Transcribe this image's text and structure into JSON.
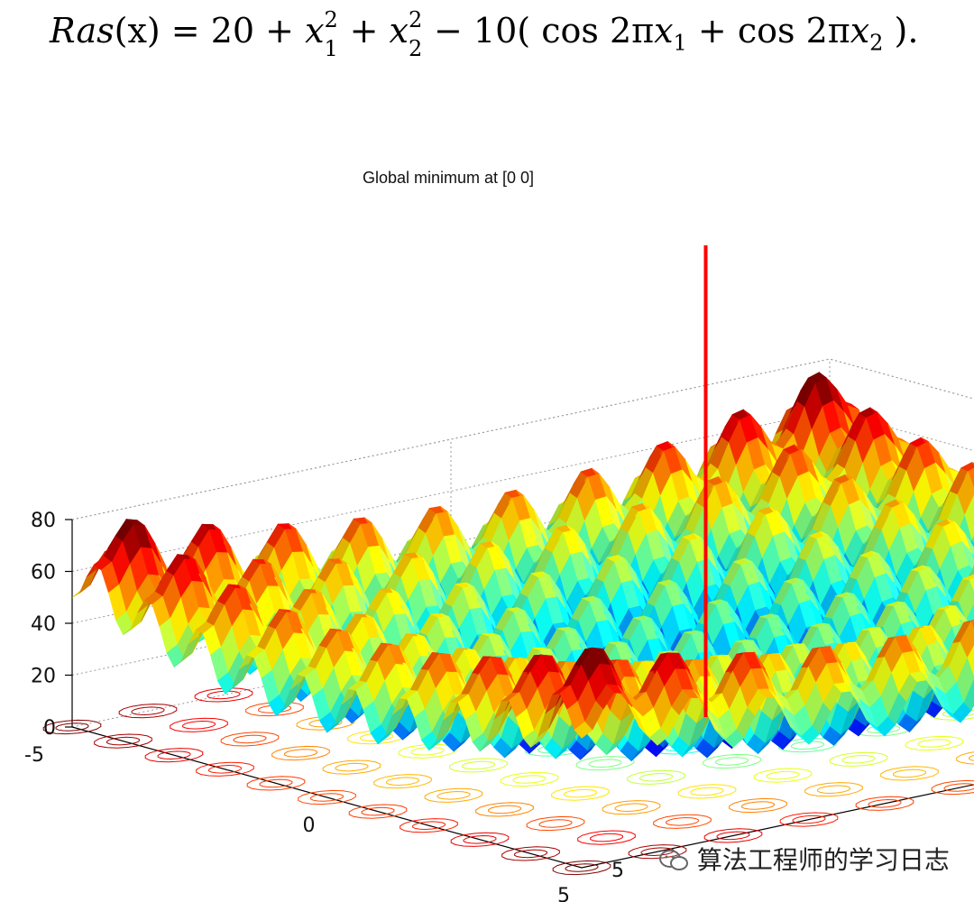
{
  "formula": {
    "lhs": "Ras",
    "arg": "(x) = 20 + ",
    "x": "x",
    "sq": "2",
    "one": "1",
    "two": "2",
    "plus": " + ",
    "minus": " − 10( cos 2π",
    "cos2": " + cos 2π",
    "close": " )."
  },
  "chart_data": {
    "type": "surface",
    "title": "Global minimum at [0 0]",
    "function": "rastrigin",
    "x": {
      "range": [
        -5,
        5
      ],
      "ticks": [
        "-5",
        "0",
        "5"
      ]
    },
    "y": {
      "range": [
        -5,
        5
      ],
      "ticks": [
        "-5",
        "0",
        "5"
      ]
    },
    "z": {
      "range": [
        0,
        80
      ],
      "ticks": [
        "0",
        "20",
        "40",
        "60",
        "80"
      ]
    },
    "marker": {
      "at": [
        0,
        0
      ],
      "color": "#ff0000",
      "label": "global minimum"
    },
    "contours_on_floor": true,
    "grid": true,
    "colormap": "jet"
  },
  "watermark": {
    "text": "算法工程师的学习日志"
  },
  "colors": {
    "marker": "#ff0000",
    "grid": "#9a9a9a",
    "axis": "#000000"
  }
}
